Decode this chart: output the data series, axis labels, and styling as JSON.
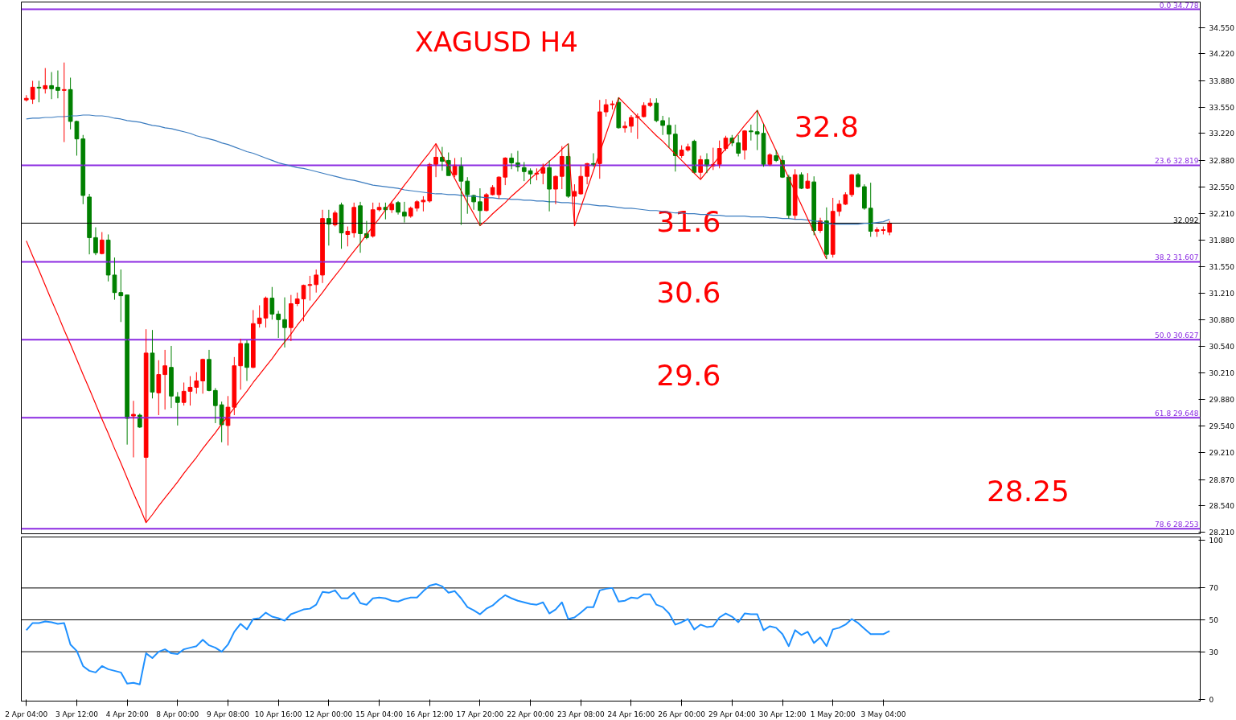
{
  "chart_data": [
    {
      "type": "candlestick",
      "title": "XAGUSD H4",
      "categories": [
        null,
        null,
        null,
        null,
        null,
        null,
        null,
        null,
        null,
        null,
        null,
        null,
        null,
        null,
        null,
        null,
        null,
        null,
        null,
        null,
        null,
        null,
        null,
        null,
        null,
        null,
        null,
        null,
        null,
        null,
        null,
        null,
        null,
        null,
        null,
        null,
        null,
        null,
        null,
        null,
        null,
        null,
        null,
        null,
        null,
        null,
        null,
        null,
        null,
        null,
        null,
        null,
        null,
        null,
        null,
        null,
        null,
        null,
        null,
        null,
        null,
        null,
        null,
        null,
        null,
        null,
        null,
        null,
        null,
        null,
        null,
        null,
        null,
        null,
        null,
        null,
        null,
        null,
        null,
        null,
        null,
        null,
        null,
        null,
        null,
        null,
        null,
        null,
        null,
        null,
        null,
        null,
        null,
        null,
        null,
        null,
        null,
        null,
        null,
        null,
        null,
        null,
        null,
        null,
        null,
        null,
        null,
        null,
        null,
        null,
        null,
        null,
        null,
        null,
        null,
        null,
        null,
        null,
        null,
        null,
        null,
        null,
        null,
        null,
        null,
        null,
        null,
        null,
        null,
        null,
        null,
        null,
        null,
        null,
        null,
        null,
        null,
        null
      ],
      "ohlc": [
        [
          33.64,
          33.7,
          33.62,
          33.66
        ],
        [
          33.65,
          33.88,
          33.59,
          33.8
        ],
        [
          33.8,
          33.88,
          33.61,
          33.79
        ],
        [
          33.78,
          34.04,
          33.72,
          33.82
        ],
        [
          33.82,
          33.99,
          33.65,
          33.78
        ],
        [
          33.8,
          34.01,
          33.66,
          33.76
        ],
        [
          33.76,
          34.11,
          33.11,
          33.77
        ],
        [
          33.77,
          33.92,
          33.27,
          33.37
        ],
        [
          33.37,
          33.38,
          32.94,
          33.15
        ],
        [
          33.15,
          33.2,
          32.33,
          32.44
        ],
        [
          32.42,
          32.46,
          31.7,
          31.91
        ],
        [
          31.91,
          32.04,
          31.69,
          31.72
        ],
        [
          31.71,
          31.98,
          31.7,
          31.88
        ],
        [
          31.88,
          31.95,
          31.36,
          31.44
        ],
        [
          31.44,
          31.66,
          31.13,
          31.22
        ],
        [
          31.22,
          31.51,
          30.85,
          31.18
        ],
        [
          31.19,
          31.19,
          29.31,
          29.64
        ],
        [
          29.67,
          29.86,
          29.15,
          29.69
        ],
        [
          29.68,
          29.7,
          29.52,
          29.53
        ],
        [
          29.15,
          30.76,
          28.33,
          30.46
        ],
        [
          30.46,
          30.75,
          29.89,
          29.97
        ],
        [
          29.96,
          30.37,
          29.68,
          30.19
        ],
        [
          30.19,
          30.5,
          29.75,
          30.3
        ],
        [
          30.28,
          30.55,
          29.77,
          29.92
        ],
        [
          29.91,
          29.97,
          29.55,
          29.84
        ],
        [
          29.84,
          30.09,
          29.8,
          29.98
        ],
        [
          29.98,
          30.17,
          29.8,
          30.03
        ],
        [
          30.03,
          30.22,
          29.95,
          30.11
        ],
        [
          30.11,
          30.39,
          29.95,
          30.38
        ],
        [
          30.38,
          30.5,
          29.98,
          29.99
        ],
        [
          29.99,
          30.02,
          29.58,
          29.8
        ],
        [
          29.81,
          29.85,
          29.34,
          29.56
        ],
        [
          29.55,
          29.92,
          29.3,
          29.78
        ],
        [
          29.78,
          30.41,
          29.68,
          30.3
        ],
        [
          30.3,
          30.64,
          30.0,
          30.58
        ],
        [
          30.58,
          30.62,
          30.11,
          30.28
        ],
        [
          30.28,
          31.0,
          30.27,
          30.83
        ],
        [
          30.83,
          31.06,
          30.78,
          30.9
        ],
        [
          30.9,
          31.17,
          30.78,
          31.15
        ],
        [
          31.15,
          31.29,
          30.88,
          30.95
        ],
        [
          30.95,
          30.99,
          30.65,
          30.88
        ],
        [
          30.88,
          31.16,
          30.53,
          30.78
        ],
        [
          30.78,
          31.19,
          30.61,
          31.08
        ],
        [
          31.08,
          31.22,
          31.05,
          31.14
        ],
        [
          31.14,
          31.32,
          30.86,
          31.31
        ],
        [
          31.31,
          31.43,
          31.12,
          31.32
        ],
        [
          31.32,
          31.51,
          31.22,
          31.44
        ],
        [
          31.44,
          32.26,
          31.34,
          32.15
        ],
        [
          32.15,
          32.26,
          31.81,
          32.08
        ],
        [
          32.07,
          32.25,
          32.05,
          32.22
        ],
        [
          32.32,
          32.35,
          31.77,
          31.97
        ],
        [
          31.95,
          32.05,
          31.8,
          31.99
        ],
        [
          31.97,
          32.35,
          31.91,
          32.29
        ],
        [
          32.31,
          32.36,
          31.72,
          31.96
        ],
        [
          31.96,
          32.12,
          31.89,
          31.91
        ],
        [
          31.93,
          32.35,
          31.91,
          32.26
        ],
        [
          32.26,
          32.35,
          32.24,
          32.29
        ],
        [
          32.29,
          32.35,
          32.14,
          32.26
        ],
        [
          32.26,
          32.37,
          32.22,
          32.33
        ],
        [
          32.35,
          32.37,
          32.2,
          32.23
        ],
        [
          32.23,
          32.36,
          32.1,
          32.18
        ],
        [
          32.18,
          32.3,
          32.16,
          32.28
        ],
        [
          32.28,
          32.38,
          32.24,
          32.36
        ],
        [
          32.36,
          32.43,
          32.24,
          32.38
        ],
        [
          32.37,
          32.85,
          32.35,
          32.83
        ],
        [
          32.83,
          33.09,
          32.67,
          32.92
        ],
        [
          32.92,
          33.05,
          32.75,
          32.87
        ],
        [
          32.88,
          32.98,
          32.69,
          32.69
        ],
        [
          32.7,
          32.91,
          32.67,
          32.82
        ],
        [
          32.81,
          32.92,
          32.07,
          32.62
        ],
        [
          32.62,
          32.67,
          32.21,
          32.45
        ],
        [
          32.44,
          32.45,
          32.26,
          32.36
        ],
        [
          32.36,
          32.53,
          32.06,
          32.25
        ],
        [
          32.25,
          32.47,
          32.24,
          32.45
        ],
        [
          32.45,
          32.57,
          32.44,
          32.54
        ],
        [
          32.45,
          32.68,
          32.4,
          32.67
        ],
        [
          32.67,
          32.92,
          32.57,
          32.91
        ],
        [
          32.91,
          32.97,
          32.77,
          32.85
        ],
        [
          32.85,
          33.0,
          32.74,
          32.8
        ],
        [
          32.79,
          32.86,
          32.62,
          32.74
        ],
        [
          32.75,
          32.78,
          32.58,
          32.71
        ],
        [
          32.71,
          32.78,
          32.63,
          32.72
        ],
        [
          32.72,
          32.84,
          32.58,
          32.79
        ],
        [
          32.79,
          32.88,
          32.24,
          32.52
        ],
        [
          32.52,
          32.69,
          32.33,
          32.68
        ],
        [
          32.68,
          33.06,
          32.52,
          32.93
        ],
        [
          32.93,
          33.09,
          32.41,
          32.43
        ],
        [
          32.43,
          32.58,
          32.06,
          32.49
        ],
        [
          32.46,
          32.81,
          32.45,
          32.68
        ],
        [
          32.68,
          32.85,
          32.58,
          32.84
        ],
        [
          32.84,
          32.97,
          32.8,
          32.82
        ],
        [
          32.84,
          33.64,
          32.65,
          33.49
        ],
        [
          33.49,
          33.65,
          33.43,
          33.58
        ],
        [
          33.58,
          33.63,
          33.52,
          33.59
        ],
        [
          33.61,
          33.67,
          33.28,
          33.29
        ],
        [
          33.29,
          33.37,
          33.23,
          33.31
        ],
        [
          33.31,
          33.45,
          33.23,
          33.42
        ],
        [
          33.42,
          33.47,
          33.15,
          33.43
        ],
        [
          33.43,
          33.61,
          33.42,
          33.57
        ],
        [
          33.57,
          33.66,
          33.55,
          33.6
        ],
        [
          33.6,
          33.66,
          33.36,
          33.38
        ],
        [
          33.38,
          33.44,
          33.2,
          33.32
        ],
        [
          33.32,
          33.42,
          33.04,
          33.21
        ],
        [
          33.21,
          33.33,
          32.74,
          32.94
        ],
        [
          32.94,
          33.07,
          32.91,
          33.01
        ],
        [
          33.01,
          33.09,
          32.99,
          33.05
        ],
        [
          33.12,
          33.14,
          32.72,
          32.73
        ],
        [
          32.73,
          32.94,
          32.64,
          32.89
        ],
        [
          32.89,
          32.97,
          32.72,
          32.81
        ],
        [
          32.81,
          33.04,
          32.76,
          32.83
        ],
        [
          32.83,
          33.13,
          32.78,
          33.03
        ],
        [
          33.03,
          33.19,
          33.0,
          33.16
        ],
        [
          33.16,
          33.2,
          33.06,
          33.1
        ],
        [
          33.1,
          33.2,
          32.93,
          32.97
        ],
        [
          33.01,
          33.26,
          32.89,
          33.25
        ],
        [
          33.25,
          33.33,
          33.13,
          33.24
        ],
        [
          33.24,
          33.51,
          33.01,
          33.21
        ],
        [
          33.22,
          33.34,
          32.8,
          32.83
        ],
        [
          32.83,
          32.97,
          32.81,
          32.95
        ],
        [
          32.94,
          33.01,
          32.86,
          32.88
        ],
        [
          32.88,
          32.94,
          32.66,
          32.67
        ],
        [
          32.67,
          32.7,
          32.15,
          32.19
        ],
        [
          32.19,
          32.77,
          32.14,
          32.7
        ],
        [
          32.7,
          32.73,
          32.52,
          32.53
        ],
        [
          32.53,
          32.72,
          32.52,
          32.62
        ],
        [
          32.61,
          32.68,
          31.94,
          32.0
        ],
        [
          32.0,
          32.16,
          31.97,
          32.12
        ],
        [
          32.12,
          32.29,
          31.64,
          31.7
        ],
        [
          31.7,
          32.41,
          31.66,
          32.24
        ],
        [
          32.24,
          32.38,
          32.18,
          32.33
        ],
        [
          32.33,
          32.48,
          32.32,
          32.45
        ],
        [
          32.45,
          32.71,
          32.42,
          32.7
        ],
        [
          32.7,
          32.72,
          32.54,
          32.55
        ],
        [
          32.55,
          32.58,
          32.26,
          32.28
        ],
        [
          32.28,
          32.6,
          31.92,
          31.99
        ],
        [
          31.99,
          32.04,
          31.92,
          32.01
        ],
        [
          32.0,
          32.05,
          31.95,
          32.01
        ],
        [
          31.98,
          32.12,
          31.94,
          32.09
        ]
      ],
      "colors": [
        "#ff0000",
        "#ff0000",
        "#008000",
        "#ff0000",
        "#008000",
        "#008000",
        "#ff0000",
        "#008000",
        "#008000",
        "#008000",
        "#008000",
        "#008000",
        "#ff0000",
        "#008000",
        "#008000",
        "#008000",
        "#008000",
        "#ff0000",
        "#008000",
        "#ff0000",
        "#008000",
        "#ff0000",
        "#ff0000",
        "#008000",
        "#008000",
        "#ff0000",
        "#ff0000",
        "#ff0000",
        "#ff0000",
        "#008000",
        "#008000",
        "#008000",
        "#ff0000",
        "#ff0000",
        "#ff0000",
        "#008000",
        "#ff0000",
        "#ff0000",
        "#ff0000",
        "#008000",
        "#008000",
        "#008000",
        "#ff0000",
        "#ff0000",
        "#ff0000",
        "#ff0000",
        "#ff0000",
        "#ff0000",
        "#008000",
        "#ff0000",
        "#008000",
        "#ff0000",
        "#ff0000",
        "#008000",
        "#008000",
        "#ff0000",
        "#ff0000",
        "#008000",
        "#ff0000",
        "#008000",
        "#008000",
        "#ff0000",
        "#ff0000",
        "#ff0000",
        "#ff0000",
        "#ff0000",
        "#008000",
        "#008000",
        "#ff0000",
        "#008000",
        "#008000",
        "#008000",
        "#008000",
        "#ff0000",
        "#ff0000",
        "#ff0000",
        "#ff0000",
        "#008000",
        "#008000",
        "#008000",
        "#008000",
        "#ff0000",
        "#ff0000",
        "#008000",
        "#ff0000",
        "#ff0000",
        "#008000",
        "#ff0000",
        "#ff0000",
        "#ff0000",
        "#008000",
        "#ff0000",
        "#ff0000",
        "#ff0000",
        "#008000",
        "#ff0000",
        "#ff0000",
        "#ff0000",
        "#ff0000",
        "#ff0000",
        "#008000",
        "#008000",
        "#008000",
        "#008000",
        "#ff0000",
        "#ff0000",
        "#008000",
        "#ff0000",
        "#008000",
        "#ff0000",
        "#ff0000",
        "#ff0000",
        "#008000",
        "#008000",
        "#ff0000",
        "#008000",
        "#008000",
        "#008000",
        "#ff0000",
        "#008000",
        "#008000",
        "#008000",
        "#ff0000",
        "#008000",
        "#ff0000",
        "#008000",
        "#ff0000",
        "#008000",
        "#ff0000",
        "#ff0000",
        "#ff0000",
        "#ff0000",
        "#008000",
        "#008000",
        "#008000",
        "#ff0000",
        "#ff0000",
        "#ff0000"
      ],
      "series": [
        {
          "type": "line",
          "color": "#3a7bbf",
          "values": [
            33.4,
            33.41,
            33.41,
            33.42,
            33.42,
            33.43,
            33.43,
            33.44,
            33.44,
            33.45,
            33.45,
            33.44,
            33.44,
            33.43,
            33.41,
            33.4,
            33.38,
            33.37,
            33.36,
            33.34,
            33.32,
            33.31,
            33.29,
            33.28,
            33.26,
            33.24,
            33.22,
            33.19,
            33.17,
            33.15,
            33.13,
            33.1,
            33.08,
            33.05,
            33.02,
            32.99,
            32.97,
            32.94,
            32.91,
            32.88,
            32.85,
            32.83,
            32.81,
            32.79,
            32.78,
            32.76,
            32.74,
            32.72,
            32.7,
            32.68,
            32.66,
            32.64,
            32.63,
            32.61,
            32.59,
            32.57,
            32.56,
            32.55,
            32.54,
            32.53,
            32.51,
            32.5,
            32.49,
            32.48,
            32.47,
            32.46,
            32.46,
            32.45,
            32.45,
            32.44,
            32.43,
            32.43,
            32.42,
            32.41,
            32.41,
            32.4,
            32.4,
            32.39,
            32.39,
            32.38,
            32.38,
            32.37,
            32.37,
            32.36,
            32.36,
            32.35,
            32.35,
            32.34,
            32.33,
            32.33,
            32.32,
            32.31,
            32.31,
            32.3,
            32.29,
            32.28,
            32.28,
            32.27,
            32.26,
            32.25,
            32.25,
            32.24,
            32.23,
            32.22,
            32.22,
            32.21,
            32.21,
            32.2,
            32.2,
            32.19,
            32.19,
            32.18,
            32.18,
            32.18,
            32.18,
            32.17,
            32.17,
            32.17,
            32.16,
            32.16,
            32.15,
            32.15,
            32.14,
            32.14,
            32.13,
            32.12,
            32.11,
            32.09,
            32.08,
            32.08,
            32.08,
            32.08,
            32.08,
            32.09,
            32.09,
            32.1,
            32.11,
            32.14
          ]
        },
        {
          "type": "line",
          "color": "#ff0000",
          "values": [
            31.87,
            31.68,
            31.5,
            31.31,
            31.12,
            30.94,
            30.75,
            30.57,
            30.38,
            30.19,
            30.01,
            29.82,
            29.63,
            29.45,
            29.26,
            29.08,
            28.89,
            28.7,
            28.52,
            28.33,
            28.43,
            28.54,
            28.64,
            28.74,
            28.84,
            28.95,
            29.05,
            29.15,
            29.26,
            29.36,
            29.46,
            29.57,
            29.67,
            29.77,
            29.88,
            29.98,
            30.09,
            30.19,
            30.29,
            30.39,
            30.5,
            30.6,
            30.7,
            30.81,
            30.91,
            31.02,
            31.12,
            31.22,
            31.33,
            31.43,
            31.53,
            31.64,
            31.74,
            31.84,
            31.95,
            32.05,
            32.15,
            32.26,
            32.36,
            32.46,
            32.57,
            32.67,
            32.78,
            32.88,
            32.98,
            33.09,
            32.94,
            32.8,
            32.65,
            32.5,
            32.35,
            32.21,
            32.06,
            32.13,
            32.21,
            32.28,
            32.35,
            32.43,
            32.5,
            32.57,
            32.65,
            32.72,
            32.8,
            32.87,
            32.94,
            33.02,
            33.09,
            32.06,
            32.29,
            32.52,
            32.75,
            32.98,
            33.21,
            33.44,
            33.67,
            33.59,
            33.51,
            33.43,
            33.35,
            33.27,
            33.19,
            33.12,
            33.04,
            32.96,
            32.88,
            32.8,
            32.72,
            32.64,
            32.74,
            32.83,
            32.93,
            33.03,
            33.12,
            33.22,
            33.32,
            33.41,
            33.51,
            33.34,
            33.17,
            33.0,
            32.83,
            32.66,
            32.49,
            32.32,
            32.15,
            31.98,
            31.81,
            31.64,
            null,
            null,
            null,
            null,
            null,
            null,
            null,
            null,
            null,
            null
          ]
        }
      ],
      "ylim": [
        28.19,
        34.87
      ],
      "yticks": [
        {
          "value": 34.55,
          "label": "34.550"
        },
        {
          "value": 34.22,
          "label": "34.220"
        },
        {
          "value": 33.88,
          "label": "33.880"
        },
        {
          "value": 33.55,
          "label": "33.550"
        },
        {
          "value": 33.22,
          "label": "33.220"
        },
        {
          "value": 32.88,
          "label": "32.880"
        },
        {
          "value": 32.55,
          "label": "32.550"
        },
        {
          "value": 32.21,
          "label": "32.210"
        },
        {
          "value": 31.88,
          "label": "31.880"
        },
        {
          "value": 31.55,
          "label": "31.550"
        },
        {
          "value": 31.21,
          "label": "31.210"
        },
        {
          "value": 30.88,
          "label": "30.880"
        },
        {
          "value": 30.54,
          "label": "30.540"
        },
        {
          "value": 30.21,
          "label": "30.210"
        },
        {
          "value": 29.88,
          "label": "29.880"
        },
        {
          "value": 29.54,
          "label": "29.540"
        },
        {
          "value": 29.21,
          "label": "29.210"
        },
        {
          "value": 28.87,
          "label": "28.870"
        },
        {
          "value": 28.54,
          "label": "28.540"
        },
        {
          "value": 28.21,
          "label": "28.210"
        }
      ],
      "ref_lines": [
        {
          "axis": "y",
          "value": 34.778,
          "label": "0.0 34.778",
          "color": "#8b2be2"
        },
        {
          "axis": "y",
          "value": 32.819,
          "label": "23.6 32.819",
          "color": "#8b2be2"
        },
        {
          "axis": "y",
          "value": 31.607,
          "label": "38.2 31.607",
          "color": "#8b2be2"
        },
        {
          "axis": "y",
          "value": 30.627,
          "label": "50.0 30.627",
          "color": "#8b2be2"
        },
        {
          "axis": "y",
          "value": 29.648,
          "label": "61.8 29.648",
          "color": "#8b2be2"
        },
        {
          "axis": "y",
          "value": 28.253,
          "label": "78.6 28.253",
          "color": "#8b2be2"
        },
        {
          "axis": "y",
          "value": 32.092,
          "label": "32.092",
          "color": "#000000"
        }
      ],
      "annotations": [
        "32.8",
        "31.6",
        "30.6",
        "29.6",
        "28.25"
      ]
    },
    {
      "type": "line",
      "categories": [
        "2 Apr 04:00",
        null,
        null,
        null,
        null,
        null,
        null,
        null,
        "3 Apr 12:00",
        null,
        null,
        null,
        null,
        null,
        null,
        null,
        "4 Apr 20:00",
        null,
        null,
        null,
        null,
        null,
        null,
        null,
        "8 Apr 00:00",
        null,
        null,
        null,
        null,
        null,
        null,
        null,
        "9 Apr 08:00",
        null,
        null,
        null,
        null,
        null,
        null,
        null,
        "10 Apr 16:00",
        null,
        null,
        null,
        null,
        null,
        null,
        null,
        "12 Apr 00:00",
        null,
        null,
        null,
        null,
        null,
        null,
        null,
        "15 Apr 04:00",
        null,
        null,
        null,
        null,
        null,
        null,
        null,
        "16 Apr 12:00",
        null,
        null,
        null,
        null,
        null,
        null,
        null,
        "17 Apr 20:00",
        null,
        null,
        null,
        null,
        null,
        null,
        null,
        "22 Apr 00:00",
        null,
        null,
        null,
        null,
        null,
        null,
        null,
        "23 Apr 08:00",
        null,
        null,
        null,
        null,
        null,
        null,
        null,
        "24 Apr 16:00",
        null,
        null,
        null,
        null,
        null,
        null,
        null,
        "26 Apr 00:00",
        null,
        null,
        null,
        null,
        null,
        null,
        null,
        "29 Apr 04:00",
        null,
        null,
        null,
        null,
        null,
        null,
        null,
        "30 Apr 12:00",
        null,
        null,
        null,
        null,
        null,
        null,
        null,
        "1 May 20:00",
        null,
        null,
        null,
        null,
        null,
        null,
        null,
        "3 May 04:00",
        null
      ],
      "series": [
        {
          "color": "#1e90ff",
          "values": [
            43.5,
            48,
            48,
            49,
            48.5,
            47.5,
            48,
            34.5,
            30.5,
            21,
            18,
            17,
            21,
            19,
            18,
            17,
            10,
            10.5,
            9.5,
            29,
            26,
            30,
            31.5,
            29,
            28.5,
            31.5,
            32.5,
            33.5,
            37.5,
            34,
            32.5,
            30,
            34.5,
            42.5,
            47.5,
            44,
            50.5,
            51,
            54.5,
            52,
            51,
            49.5,
            53.5,
            55,
            56.5,
            57,
            59.5,
            67.5,
            67,
            68.5,
            63.5,
            63.5,
            67,
            60.5,
            59.5,
            63.5,
            64,
            63.5,
            62,
            61.5,
            63,
            64,
            64,
            68,
            71.5,
            72.5,
            71,
            67,
            68,
            63.5,
            58,
            56,
            53.5,
            57,
            59,
            62.5,
            65.5,
            63.5,
            62,
            61,
            60,
            59.5,
            61,
            54,
            56.5,
            61,
            50.5,
            51.5,
            54.5,
            58,
            58,
            68.5,
            69.5,
            70,
            61.5,
            62,
            64,
            63.5,
            66,
            66,
            59.5,
            58,
            54,
            47,
            48.5,
            50.5,
            44,
            47,
            45.5,
            46,
            51.5,
            54,
            52,
            48.5,
            54,
            53.5,
            53.5,
            43.5,
            46,
            45,
            41,
            33.5,
            43.5,
            40.5,
            42.5,
            35.5,
            39,
            33.5,
            44,
            45,
            47,
            50.5,
            48,
            44.5,
            41,
            41,
            41,
            43
          ]
        }
      ],
      "ylim": [
        -1,
        102
      ],
      "yticks": [
        0,
        30,
        50,
        70,
        100
      ],
      "ref_lines": [
        {
          "axis": "y",
          "value": 70,
          "color": "#000000"
        },
        {
          "axis": "y",
          "value": 50,
          "color": "#000000"
        },
        {
          "axis": "y",
          "value": 30,
          "color": "#000000"
        }
      ]
    }
  ]
}
